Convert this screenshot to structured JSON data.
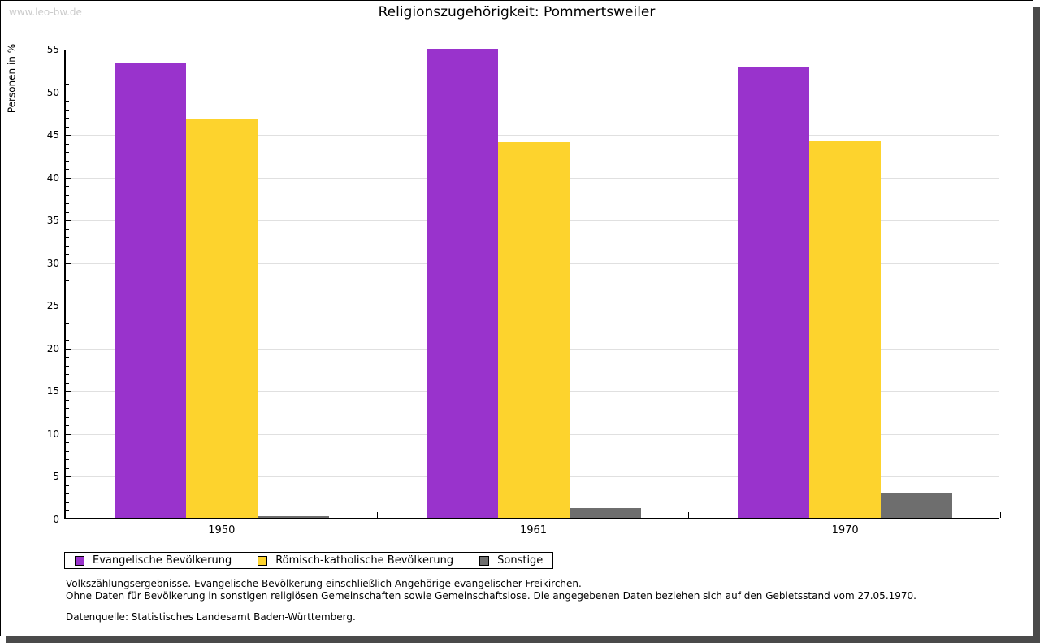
{
  "watermark": "www.leo-bw.de",
  "chart_data": {
    "type": "bar",
    "title": "Religionszugehörigkeit: Pommertsweiler",
    "xlabel": "",
    "ylabel": "Personen in %",
    "ylim": [
      0,
      55
    ],
    "ytick_step": 5,
    "y_minor_tick_step": 1,
    "grid": true,
    "legend_position": "bottom",
    "categories": [
      "1950",
      "1961",
      "1970"
    ],
    "series": [
      {
        "name": "Evangelische Bevölkerung",
        "color": "#9933cc",
        "values": [
          53.2,
          54.9,
          52.8
        ]
      },
      {
        "name": "Römisch-katholische Bevölkerung",
        "color": "#fdd32d",
        "values": [
          46.7,
          44.0,
          44.2
        ]
      },
      {
        "name": "Sonstige",
        "color": "#6e6e6e",
        "values": [
          0.2,
          1.1,
          2.9
        ]
      }
    ],
    "colors": {
      "gridline": "#e0e0e0",
      "axis": "#000000"
    }
  },
  "footnotes": {
    "line1": "Volkszählungsergebnisse. Evangelische Bevölkerung einschließlich Angehörige evangelischer Freikirchen.",
    "line2": "Ohne Daten für Bevölkerung in sonstigen religiösen Gemeinschaften sowie Gemeinschaftslose. Die angegebenen Daten beziehen sich auf den Gebietsstand vom 27.05.1970.",
    "source": "Datenquelle: Statistisches Landesamt Baden-Württemberg."
  }
}
